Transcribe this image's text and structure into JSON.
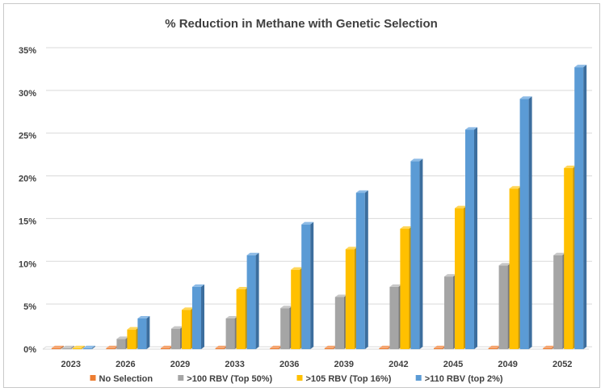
{
  "chart_data": {
    "type": "bar",
    "title": "% Reduction in Methane with Genetic Selection",
    "xlabel": "",
    "ylabel": "",
    "categories": [
      "2023",
      "2026",
      "2029",
      "2033",
      "2036",
      "2039",
      "2042",
      "2045",
      "2049",
      "2052"
    ],
    "ylim": [
      0,
      35
    ],
    "yticks": [
      0,
      5,
      10,
      15,
      20,
      25,
      30,
      35
    ],
    "ytick_labels": [
      "0%",
      "5%",
      "10%",
      "15%",
      "20%",
      "25%",
      "30%",
      "35%"
    ],
    "grid": true,
    "legend_position": "bottom",
    "style": "3d-column",
    "series": [
      {
        "name": "No Selection",
        "color": "#ED7D31",
        "side_color": "#B35A1F",
        "top_color": "#F4A36E",
        "values": [
          0,
          0,
          0,
          0,
          0,
          0,
          0,
          0,
          0,
          0
        ]
      },
      {
        "name": ">100 RBV (Top 50%)",
        "color": "#A5A5A5",
        "side_color": "#7A7A7A",
        "top_color": "#C8C8C8",
        "values": [
          0,
          1.2,
          2.4,
          3.6,
          4.8,
          6.1,
          7.3,
          8.5,
          9.8,
          11.0
        ]
      },
      {
        "name": ">105 RBV (Top 16%)",
        "color": "#FFC000",
        "side_color": "#C99600",
        "top_color": "#FFD659",
        "values": [
          0,
          2.3,
          4.6,
          7.0,
          9.3,
          11.7,
          14.1,
          16.5,
          18.8,
          21.2
        ]
      },
      {
        "name": ">110 RBV (top 2%)",
        "color": "#5B9BD5",
        "side_color": "#3C6E9E",
        "top_color": "#8DBBE6",
        "values": [
          0,
          3.6,
          7.3,
          11.0,
          14.6,
          18.3,
          22.0,
          25.7,
          29.3,
          33.0
        ]
      }
    ]
  }
}
